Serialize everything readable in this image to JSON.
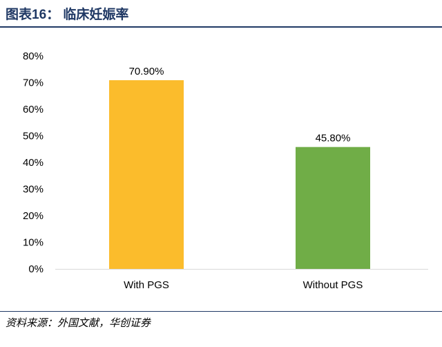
{
  "header": {
    "title": "图表16： 临床妊娠率"
  },
  "footer": {
    "source": "资料来源：外国文献，华创证券"
  },
  "chart_data": {
    "type": "bar",
    "categories": [
      "With PGS",
      "Without PGS"
    ],
    "values": [
      70.9,
      45.8
    ],
    "data_labels": [
      "70.90%",
      "45.80%"
    ],
    "colors": [
      "#fbbc2c",
      "#70ad47"
    ],
    "ylim": [
      0,
      80
    ],
    "yticks": [
      0,
      10,
      20,
      30,
      40,
      50,
      60,
      70,
      80
    ],
    "ytick_labels": [
      "0%",
      "10%",
      "20%",
      "30%",
      "40%",
      "50%",
      "60%",
      "70%",
      "80%"
    ],
    "grid": false,
    "legend": "none"
  }
}
